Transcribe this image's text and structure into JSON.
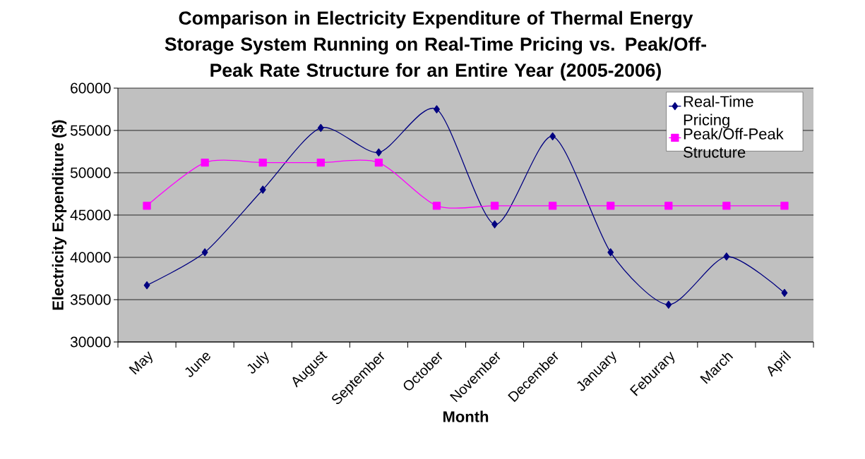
{
  "chart_data": {
    "type": "line",
    "title": "Comparison in Electricity Expenditure of Thermal Energy Storage System Running on Real-Time Pricing vs. Peak/Off-Peak Rate Structure for an Entire Year (2005-2006)",
    "xlabel": "Month",
    "ylabel": "Electricity Expenditure ($)",
    "categories": [
      "May",
      "June",
      "July",
      "August",
      "September",
      "October",
      "November",
      "December",
      "January",
      "Feburary",
      "March",
      "April"
    ],
    "series": [
      {
        "name": "Real-Time Pricing",
        "color": "#000080",
        "marker": "diamond",
        "values": [
          36700,
          40600,
          48000,
          55300,
          52400,
          57500,
          43900,
          54300,
          40600,
          34400,
          40100,
          35800
        ]
      },
      {
        "name": "Peak/Off-Peak Structure",
        "color": "#ff00ff",
        "marker": "square",
        "values": [
          46100,
          51200,
          51200,
          51200,
          51200,
          46100,
          46100,
          46100,
          46100,
          46100,
          46100,
          46100
        ]
      }
    ],
    "ylim": [
      30000,
      60000
    ],
    "yticks": [
      30000,
      35000,
      40000,
      45000,
      50000,
      55000,
      60000
    ],
    "grid": "y",
    "legend": "top right",
    "line_style": "solid"
  }
}
